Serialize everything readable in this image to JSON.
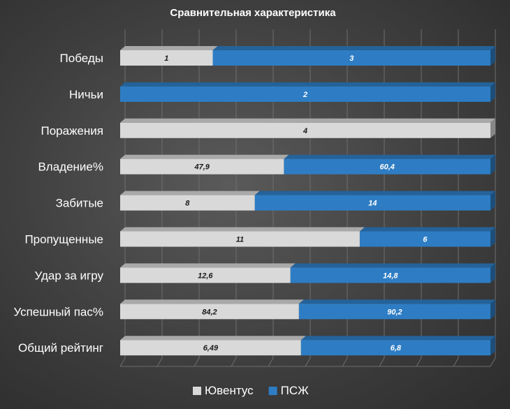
{
  "chart_data": {
    "type": "bar",
    "orientation": "horizontal",
    "stacking": "percent",
    "title": "Сравнительная характеристика",
    "categories": [
      "Победы",
      "Ничьи",
      "Поражения",
      "Владение%",
      "Забитые",
      "Пропущенные",
      "Удар за игру",
      "Успешный пас%",
      "Общий рейтинг"
    ],
    "series": [
      {
        "name": "Ювентус",
        "color": "#d9d9d9",
        "values": [
          1,
          0,
          4,
          47.9,
          8,
          11,
          12.6,
          84.2,
          6.49
        ],
        "labels": [
          "1",
          "",
          "4",
          "47,9",
          "8",
          "11",
          "12,6",
          "84,2",
          "6,49"
        ]
      },
      {
        "name": "ПСЖ",
        "color": "#2e7dc4",
        "values": [
          3,
          2,
          0,
          60.4,
          14,
          6,
          14.8,
          90.2,
          6.8
        ],
        "labels": [
          "3",
          "2",
          "",
          "60,4",
          "14",
          "6",
          "14,8",
          "90,2",
          "6,8"
        ]
      }
    ],
    "grid": true,
    "legend": "bottom"
  }
}
